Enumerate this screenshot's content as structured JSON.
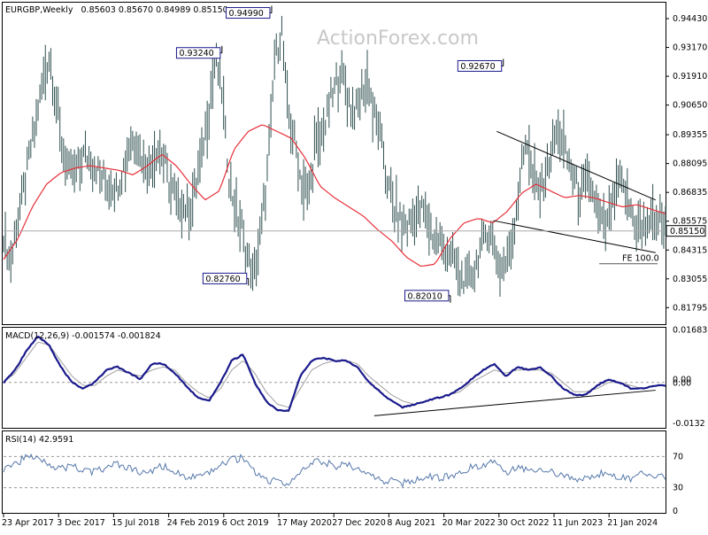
{
  "header": {
    "symbol": "EURGBP,Weekly",
    "ohlc": "0.85603 0.85670 0.84989 0.85150",
    "watermark": "ActionForex.com"
  },
  "colors": {
    "price": "#2f4f4f",
    "sma": "#e8303a",
    "macd": "#1a1a8c",
    "signal": "#a0a0a0",
    "rsi": "#5577aa",
    "trend": "#000000",
    "label_border": "#1a1a8c",
    "last_price_bg": "#ffffff"
  },
  "chart_data": [
    {
      "type": "line",
      "pane": "price",
      "ylim": [
        0.8115,
        0.9505
      ],
      "y_ticks": [
        "0.94430",
        "0.93170",
        "0.91910",
        "0.90650",
        "0.89355",
        "0.88095",
        "0.86835",
        "0.85575",
        "0.84315",
        "0.83055",
        "0.81795"
      ],
      "x_ticks": [
        "23 Apr 2017",
        "3 Dec 2017",
        "15 Jul 2018",
        "24 Feb 2019",
        "6 Oct 2019",
        "17 May 2020",
        "27 Dec 2020",
        "8 Aug 2021",
        "20 Mar 2022",
        "30 Oct 2022",
        "11 Jun 2023",
        "21 Jan 2024"
      ],
      "last_price": "0.85150",
      "annotations": [
        {
          "text": "0.93240",
          "value": 0.9324,
          "t": 0.33
        },
        {
          "text": "0.94990",
          "value": 0.9499,
          "t": 0.405
        },
        {
          "text": "0.82760",
          "value": 0.8276,
          "t": 0.37
        },
        {
          "text": "0.92670",
          "value": 0.9267,
          "t": 0.755
        },
        {
          "text": "0.82010",
          "value": 0.8201,
          "t": 0.675
        },
        {
          "text": "FE 100.0",
          "value": 0.8391,
          "t": 0.98
        }
      ],
      "series": [
        {
          "kind": "price",
          "values": [
            0.852,
            0.836,
            0.855,
            0.868,
            0.885,
            0.902,
            0.918,
            0.929,
            0.905,
            0.885,
            0.875,
            0.878,
            0.885,
            0.882,
            0.879,
            0.874,
            0.872,
            0.87,
            0.878,
            0.889,
            0.892,
            0.884,
            0.879,
            0.887,
            0.884,
            0.873,
            0.866,
            0.862,
            0.859,
            0.872,
            0.886,
            0.903,
            0.928,
            0.912,
            0.876,
            0.861,
            0.852,
            0.838,
            0.831,
            0.855,
            0.882,
            0.926,
            0.94,
            0.902,
            0.891,
            0.872,
            0.867,
            0.886,
            0.892,
            0.903,
            0.914,
            0.922,
            0.909,
            0.904,
            0.91,
            0.918,
            0.902,
            0.892,
            0.872,
            0.861,
            0.856,
            0.853,
            0.858,
            0.861,
            0.857,
            0.849,
            0.846,
            0.843,
            0.838,
            0.832,
            0.829,
            0.834,
            0.843,
            0.852,
            0.846,
            0.835,
            0.838,
            0.852,
            0.873,
            0.893,
            0.874,
            0.868,
            0.878,
            0.889,
            0.896,
            0.885,
            0.875,
            0.868,
            0.872,
            0.869,
            0.857,
            0.852,
            0.862,
            0.874,
            0.867,
            0.858,
            0.852,
            0.853,
            0.858,
            0.857,
            0.853
          ],
          "n_weeks": 365
        },
        {
          "kind": "sma",
          "values": [
            0.839,
            0.848,
            0.862,
            0.872,
            0.877,
            0.879,
            0.88,
            0.879,
            0.878,
            0.876,
            0.88,
            0.885,
            0.88,
            0.872,
            0.865,
            0.869,
            0.887,
            0.895,
            0.898,
            0.895,
            0.892,
            0.883,
            0.871,
            0.866,
            0.862,
            0.858,
            0.852,
            0.847,
            0.84,
            0.836,
            0.837,
            0.848,
            0.855,
            0.857,
            0.855,
            0.86,
            0.868,
            0.872,
            0.869,
            0.866,
            0.867,
            0.866,
            0.864,
            0.862,
            0.863,
            0.861,
            0.859
          ],
          "n_weeks": 365
        }
      ],
      "trendlines": [
        {
          "from": {
            "t": 0.745,
            "value": 0.895
          },
          "to": {
            "t": 0.985,
            "value": 0.865
          }
        },
        {
          "from": {
            "t": 0.74,
            "value": 0.856
          },
          "to": {
            "t": 0.985,
            "value": 0.842
          }
        }
      ]
    },
    {
      "type": "line",
      "pane": "macd",
      "title": "MACD(12,26,9) -0.001574 -0.001824",
      "ylim": [
        -0.014,
        0.017
      ],
      "y_ticks": [
        "0.016838",
        "0.00",
        "0.00",
        "-0.0132"
      ],
      "series": [
        {
          "name": "MACD",
          "values": [
            0.0,
            0.004,
            0.01,
            0.015,
            0.012,
            0.005,
            0.0,
            -0.002,
            0.0,
            0.004,
            0.005,
            0.003,
            0.001,
            0.006,
            0.006,
            0.003,
            -0.001,
            -0.005,
            -0.006,
            0.0,
            0.007,
            0.009,
            0.0,
            -0.006,
            -0.009,
            -0.009,
            0.002,
            0.007,
            0.008,
            0.007,
            0.007,
            0.005,
            0.0,
            -0.003,
            -0.006,
            -0.008,
            -0.007,
            -0.006,
            -0.005,
            -0.004,
            -0.002,
            0.001,
            0.004,
            0.006,
            0.002,
            0.005,
            0.004,
            0.005,
            0.002,
            -0.002,
            -0.004,
            -0.004,
            -0.001,
            0.001,
            0.0,
            -0.002,
            -0.002,
            -0.001,
            -0.001
          ]
        },
        {
          "name": "Signal",
          "values": [
            0.0,
            0.003,
            0.008,
            0.013,
            0.012,
            0.007,
            0.002,
            -0.001,
            -0.001,
            0.002,
            0.004,
            0.003,
            0.002,
            0.004,
            0.005,
            0.004,
            0.0,
            -0.003,
            -0.005,
            -0.002,
            0.004,
            0.007,
            0.003,
            -0.003,
            -0.007,
            -0.008,
            -0.002,
            0.004,
            0.006,
            0.007,
            0.007,
            0.006,
            0.002,
            -0.001,
            -0.004,
            -0.006,
            -0.007,
            -0.006,
            -0.005,
            -0.004,
            -0.003,
            0.0,
            0.002,
            0.004,
            0.003,
            0.004,
            0.004,
            0.004,
            0.003,
            0.0,
            -0.003,
            -0.003,
            -0.002,
            0.0,
            0.0,
            -0.001,
            -0.002,
            -0.001,
            -0.001
          ]
        }
      ],
      "trendline": {
        "from": {
          "t": 0.56,
          "value": -0.0107
        },
        "to": {
          "t": 0.985,
          "value": -0.0025
        }
      }
    },
    {
      "type": "line",
      "pane": "rsi",
      "title": "RSI(14) 42.9591",
      "ylim": [
        0,
        100
      ],
      "y_ticks": [
        70,
        30,
        0
      ],
      "levels": [
        70,
        30
      ],
      "series": [
        {
          "name": "RSI",
          "values": [
            55,
            62,
            68,
            72,
            60,
            54,
            58,
            52,
            50,
            56,
            60,
            55,
            48,
            52,
            58,
            50,
            45,
            42,
            48,
            60,
            66,
            68,
            50,
            40,
            38,
            35,
            48,
            62,
            64,
            58,
            60,
            55,
            45,
            40,
            38,
            36,
            40,
            44,
            42,
            46,
            48,
            56,
            60,
            66,
            50,
            58,
            52,
            56,
            50,
            44,
            40,
            42,
            46,
            50,
            44,
            42,
            48,
            46,
            43
          ]
        }
      ]
    }
  ]
}
